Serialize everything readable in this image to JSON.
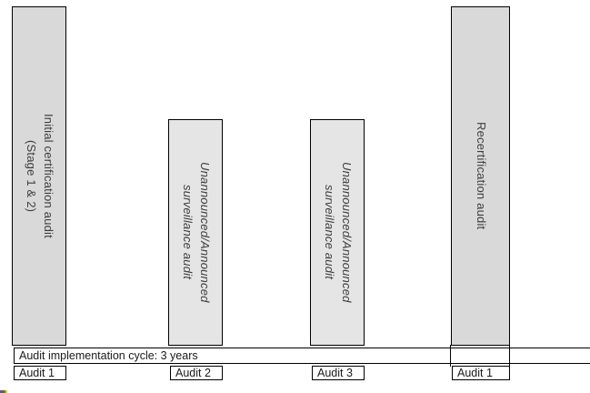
{
  "diagram": {
    "bars": [
      {
        "name": "initial-certification-audit",
        "label": "Initial certification audit\n(Stage 1 & 2)",
        "italic": false,
        "fill": "#d9d9d9"
      },
      {
        "name": "surveillance-audit-1",
        "label": "Unannounced/Announced\nsurveillance audit",
        "italic": true,
        "fill": "#e5e5e5"
      },
      {
        "name": "surveillance-audit-2",
        "label": "Unannounced/Announced\nsurveillance audit",
        "italic": true,
        "fill": "#e5e5e5"
      },
      {
        "name": "recertification-audit",
        "label": "Recertification audit",
        "italic": false,
        "fill": "#d9d9d9"
      }
    ],
    "cycle_band": {
      "label": "Audit implementation cycle: 3 years"
    },
    "audit_boxes": [
      {
        "label": "Audit 1"
      },
      {
        "label": "Audit 2"
      },
      {
        "label": "Audit 3"
      },
      {
        "label": "Audit 1"
      }
    ],
    "colors": {
      "background": "#ffffff",
      "outer_bar_fill": "#d9d9d9",
      "inner_bar_fill": "#e5e5e5",
      "border": "#000000",
      "bar_label_text": "#3d3d3d",
      "band_text": "#1a1a1a",
      "logo_fragment": [
        "#3a66b0",
        "#bb3a2b",
        "#44953c",
        "#e8c22a"
      ]
    }
  }
}
